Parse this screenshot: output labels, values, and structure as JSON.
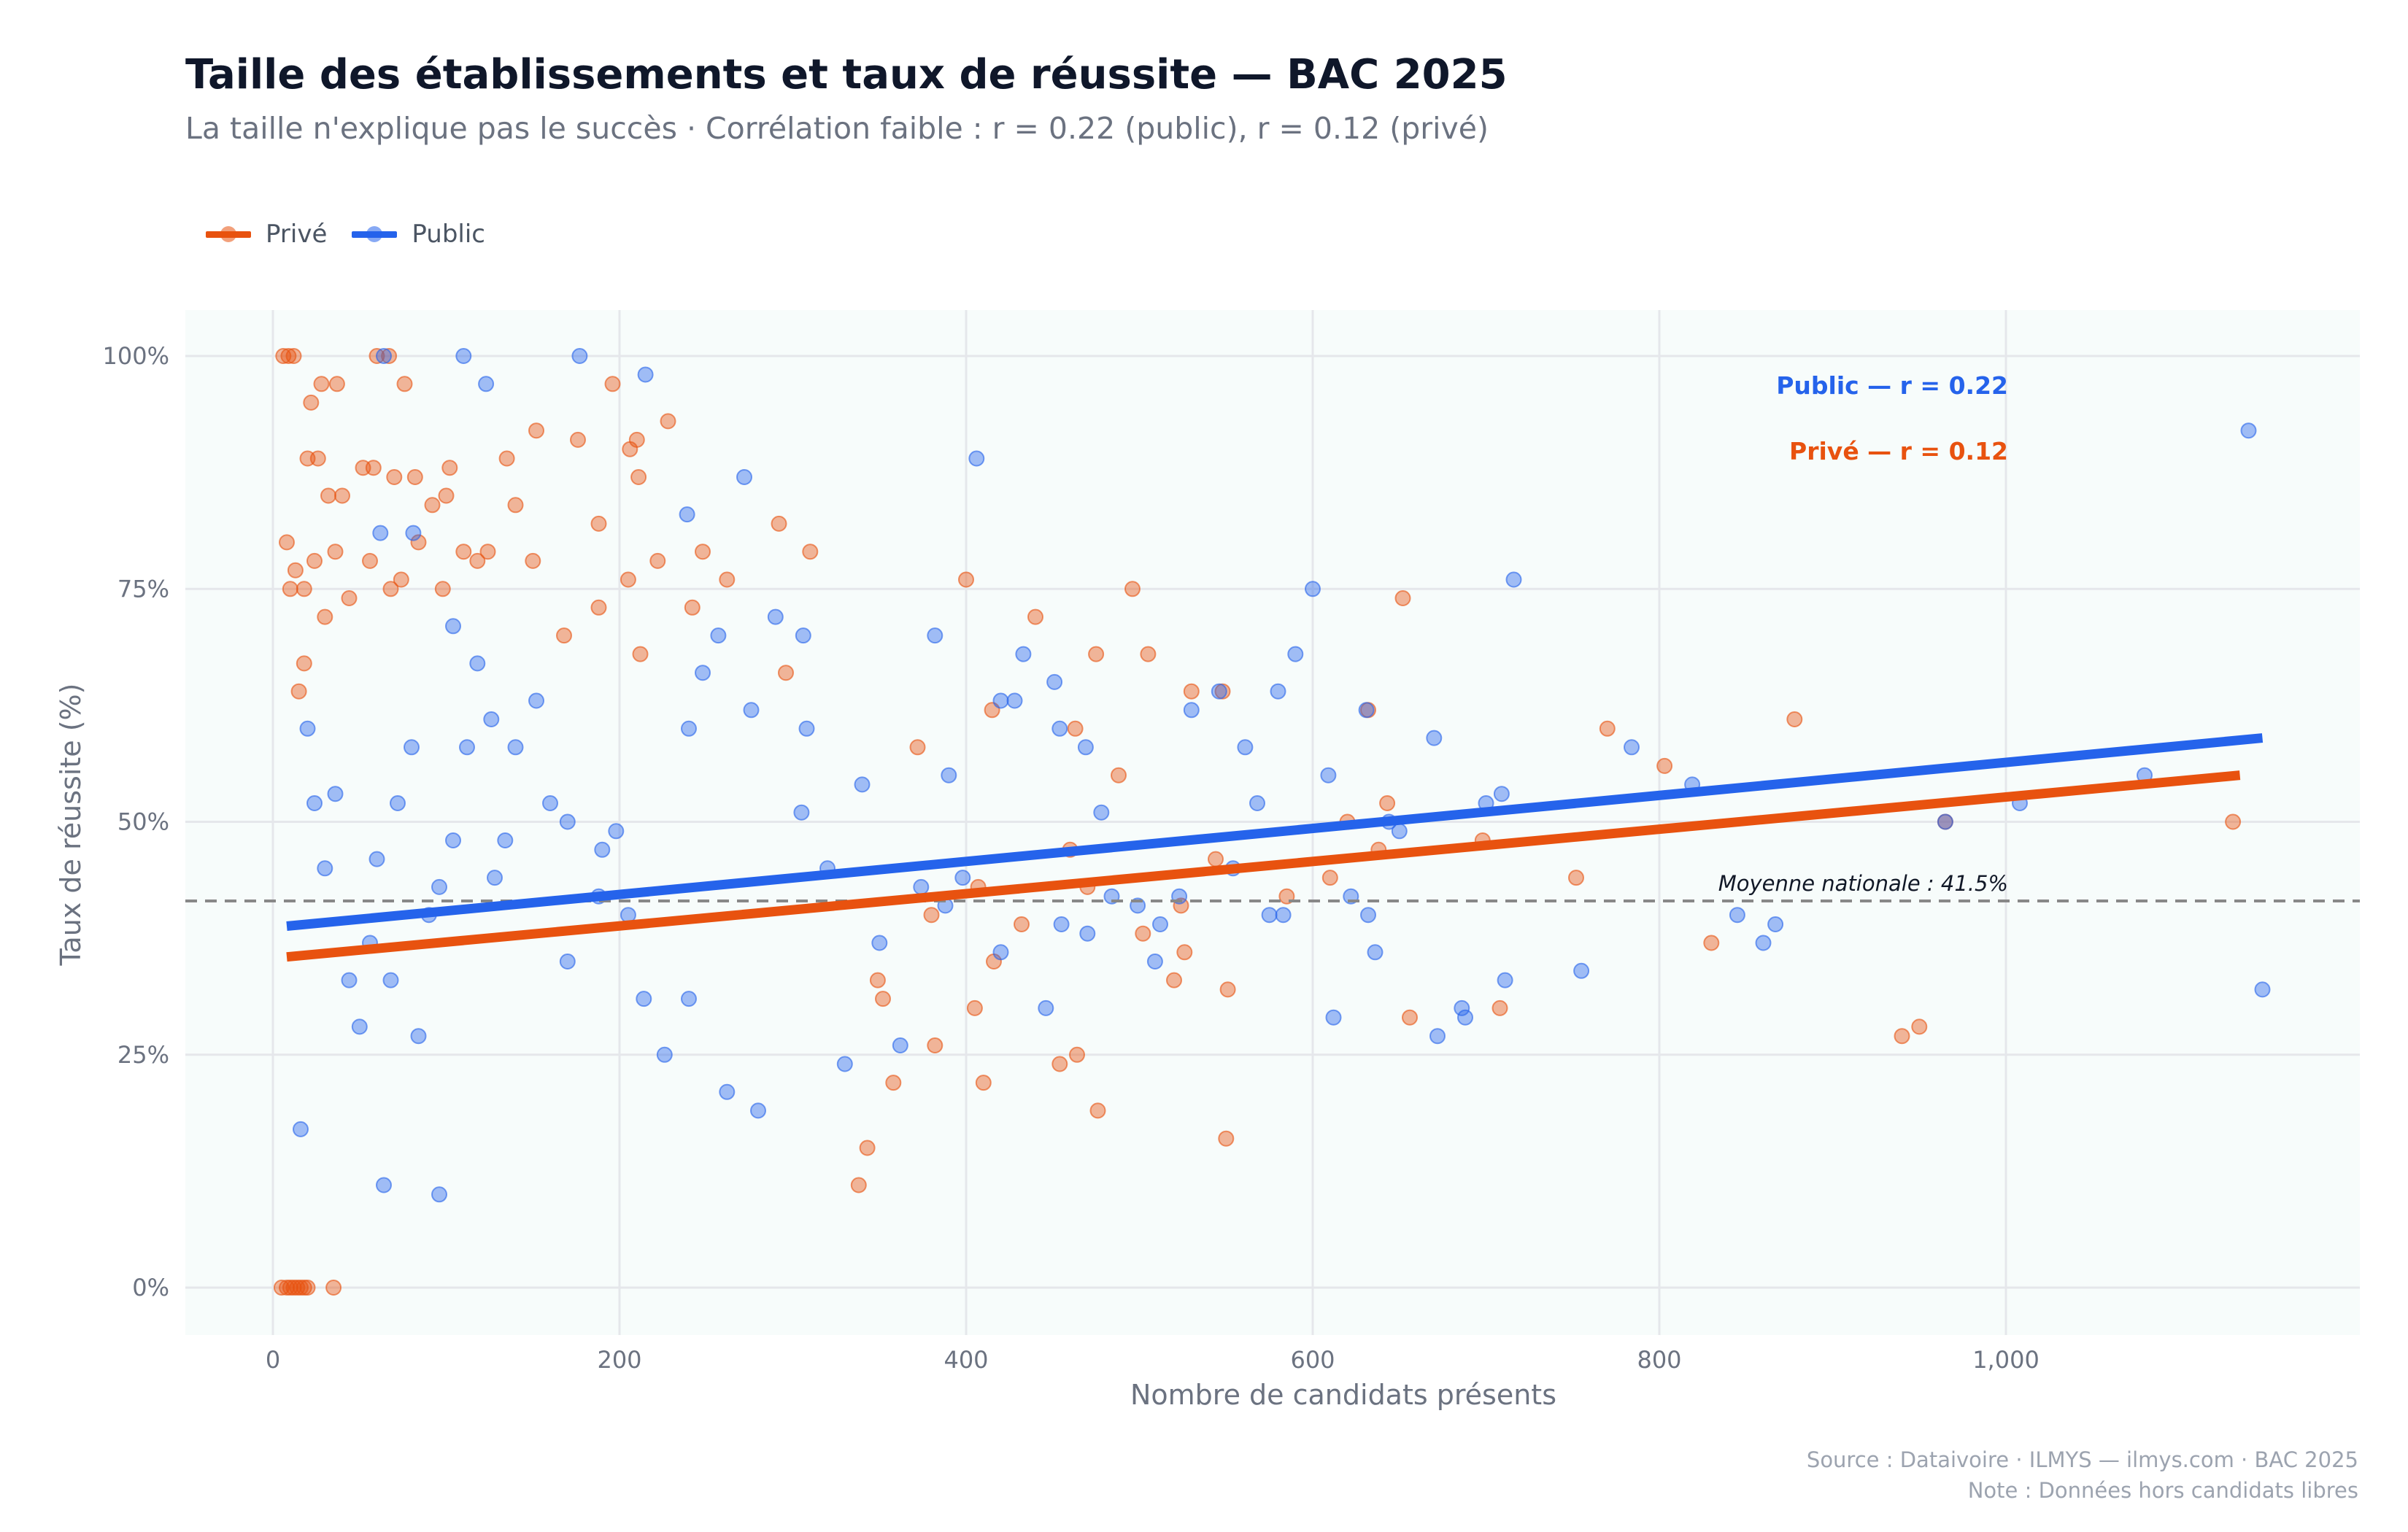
{
  "header": {
    "title": "Taille des établissements et taux de réussite — BAC 2025",
    "subtitle": "La taille n'explique pas le succès · Corrélation faible : r = 0.22 (public), r = 0.12 (privé)"
  },
  "legend": {
    "items": [
      {
        "label": "Privé",
        "color": "#e8520f"
      },
      {
        "label": "Public",
        "color": "#2563eb"
      }
    ]
  },
  "footer": {
    "source": "Source : Dataivoire  ·  ILMYS — ilmys.com  ·  BAC 2025",
    "note": "Note : Données hors candidats libres"
  },
  "chart_data": {
    "type": "scatter",
    "title": "Taille des établissements et taux de réussite — BAC 2025",
    "xlabel": "Nombre de candidats présents",
    "ylabel": "Taux de réussite (%)",
    "xlim": [
      -50,
      1200
    ],
    "ylim": [
      -5,
      105
    ],
    "x_ticks": [
      0,
      200,
      400,
      600,
      800,
      1000
    ],
    "x_tick_labels": [
      "0",
      "200",
      "400",
      "600",
      "800",
      "1,000"
    ],
    "y_ticks": [
      0,
      25,
      50,
      75,
      100
    ],
    "y_tick_labels": [
      "0%",
      "25%",
      "50%",
      "75%",
      "100%"
    ],
    "grid": true,
    "legend_position": "top-left",
    "series": [
      {
        "name": "Privé",
        "color": "#e8520f",
        "points": [
          [
            5,
            0
          ],
          [
            8,
            0
          ],
          [
            10,
            0
          ],
          [
            12,
            0
          ],
          [
            14,
            0
          ],
          [
            16,
            0
          ],
          [
            18,
            0
          ],
          [
            20,
            0
          ],
          [
            35,
            0
          ],
          [
            6,
            100
          ],
          [
            9,
            100
          ],
          [
            12,
            100
          ],
          [
            37,
            97
          ],
          [
            60,
            100
          ],
          [
            67,
            100
          ],
          [
            76,
            97
          ],
          [
            196,
            97
          ],
          [
            210,
            91
          ],
          [
            206,
            90
          ],
          [
            176,
            91
          ],
          [
            8,
            80
          ],
          [
            10,
            75
          ],
          [
            13,
            77
          ],
          [
            15,
            64
          ],
          [
            18,
            67
          ],
          [
            22,
            95
          ],
          [
            28,
            97
          ],
          [
            20,
            89
          ],
          [
            26,
            89
          ],
          [
            32,
            85
          ],
          [
            40,
            85
          ],
          [
            52,
            88
          ],
          [
            58,
            88
          ],
          [
            70,
            87
          ],
          [
            82,
            87
          ],
          [
            92,
            84
          ],
          [
            100,
            85
          ],
          [
            102,
            88
          ],
          [
            135,
            89
          ],
          [
            140,
            84
          ],
          [
            152,
            92
          ],
          [
            188,
            82
          ],
          [
            211,
            87
          ],
          [
            228,
            93
          ],
          [
            18,
            75
          ],
          [
            24,
            78
          ],
          [
            30,
            72
          ],
          [
            36,
            79
          ],
          [
            44,
            74
          ],
          [
            56,
            78
          ],
          [
            68,
            75
          ],
          [
            74,
            76
          ],
          [
            84,
            80
          ],
          [
            98,
            75
          ],
          [
            110,
            79
          ],
          [
            118,
            78
          ],
          [
            124,
            79
          ],
          [
            150,
            78
          ],
          [
            168,
            70
          ],
          [
            188,
            73
          ],
          [
            205,
            76
          ],
          [
            212,
            68
          ],
          [
            222,
            78
          ],
          [
            248,
            79
          ],
          [
            262,
            76
          ],
          [
            292,
            82
          ],
          [
            310,
            79
          ],
          [
            296,
            66
          ],
          [
            242,
            73
          ],
          [
            400,
            76
          ],
          [
            407,
            43
          ],
          [
            415,
            62
          ],
          [
            440,
            72
          ],
          [
            463,
            60
          ],
          [
            475,
            68
          ],
          [
            496,
            75
          ],
          [
            505,
            68
          ],
          [
            530,
            64
          ],
          [
            548,
            64
          ],
          [
            585,
            42
          ],
          [
            610,
            44
          ],
          [
            620,
            50
          ],
          [
            632,
            62
          ],
          [
            638,
            47
          ],
          [
            652,
            74
          ],
          [
            770,
            60
          ],
          [
            803,
            56
          ],
          [
            830,
            37
          ],
          [
            878,
            61
          ],
          [
            940,
            27
          ],
          [
            950,
            28
          ],
          [
            965,
            50
          ],
          [
            1131,
            50
          ],
          [
            460,
            47
          ],
          [
            470,
            43
          ],
          [
            488,
            55
          ],
          [
            502,
            38
          ],
          [
            520,
            33
          ],
          [
            524,
            41
          ],
          [
            551,
            32
          ],
          [
            550,
            16
          ],
          [
            476,
            19
          ],
          [
            464,
            25
          ],
          [
            454,
            24
          ],
          [
            432,
            39
          ],
          [
            416,
            35
          ],
          [
            405,
            30
          ],
          [
            410,
            22
          ],
          [
            380,
            40
          ],
          [
            372,
            58
          ],
          [
            382,
            26
          ],
          [
            349,
            33
          ],
          [
            338,
            11
          ],
          [
            352,
            31
          ],
          [
            358,
            22
          ],
          [
            343,
            15
          ],
          [
            698,
            48
          ],
          [
            752,
            44
          ],
          [
            708,
            30
          ],
          [
            656,
            29
          ],
          [
            643,
            52
          ],
          [
            544,
            46
          ],
          [
            526,
            36
          ]
        ],
        "trend": {
          "x0": 8,
          "y0": 35.5,
          "x1": 1135,
          "y1": 55.0,
          "r": 0.12,
          "label": "Privé — r = 0.12"
        }
      },
      {
        "name": "Public",
        "color": "#2563eb",
        "points": [
          [
            64,
            100
          ],
          [
            110,
            100
          ],
          [
            177,
            100
          ],
          [
            123,
            97
          ],
          [
            215,
            98
          ],
          [
            406,
            89
          ],
          [
            272,
            87
          ],
          [
            239,
            83
          ],
          [
            81,
            81
          ],
          [
            62,
            81
          ],
          [
            1140,
            92
          ],
          [
            716,
            76
          ],
          [
            600,
            75
          ],
          [
            382,
            70
          ],
          [
            306,
            70
          ],
          [
            257,
            70
          ],
          [
            590,
            68
          ],
          [
            433,
            68
          ],
          [
            631,
            62
          ],
          [
            580,
            64
          ],
          [
            546,
            64
          ],
          [
            530,
            62
          ],
          [
            451,
            65
          ],
          [
            428,
            63
          ],
          [
            420,
            63
          ],
          [
            390,
            55
          ],
          [
            454,
            60
          ],
          [
            469,
            58
          ],
          [
            478,
            51
          ],
          [
            484,
            42
          ],
          [
            499,
            41
          ],
          [
            509,
            35
          ],
          [
            512,
            39
          ],
          [
            523,
            42
          ],
          [
            554,
            45
          ],
          [
            561,
            58
          ],
          [
            568,
            52
          ],
          [
            575,
            40
          ],
          [
            583,
            40
          ],
          [
            609,
            55
          ],
          [
            612,
            29
          ],
          [
            622,
            42
          ],
          [
            632,
            40
          ],
          [
            636,
            36
          ],
          [
            644,
            50
          ],
          [
            650,
            49
          ],
          [
            670,
            59
          ],
          [
            672,
            27
          ],
          [
            686,
            30
          ],
          [
            688,
            29
          ],
          [
            700,
            52
          ],
          [
            709,
            53
          ],
          [
            711,
            33
          ],
          [
            755,
            34
          ],
          [
            784,
            58
          ],
          [
            819,
            54
          ],
          [
            845,
            40
          ],
          [
            860,
            37
          ],
          [
            867,
            39
          ],
          [
            965,
            50
          ],
          [
            1008,
            52
          ],
          [
            1080,
            55
          ],
          [
            1148,
            32
          ],
          [
            470,
            38
          ],
          [
            455,
            39
          ],
          [
            446,
            30
          ],
          [
            420,
            36
          ],
          [
            388,
            41
          ],
          [
            362,
            26
          ],
          [
            350,
            37
          ],
          [
            330,
            24
          ],
          [
            320,
            45
          ],
          [
            305,
            51
          ],
          [
            290,
            72
          ],
          [
            280,
            19
          ],
          [
            262,
            21
          ],
          [
            240,
            31
          ],
          [
            226,
            25
          ],
          [
            214,
            31
          ],
          [
            205,
            40
          ],
          [
            198,
            49
          ],
          [
            188,
            42
          ],
          [
            170,
            35
          ],
          [
            160,
            52
          ],
          [
            152,
            63
          ],
          [
            140,
            58
          ],
          [
            134,
            48
          ],
          [
            126,
            61
          ],
          [
            118,
            67
          ],
          [
            112,
            58
          ],
          [
            104,
            48
          ],
          [
            96,
            43
          ],
          [
            90,
            40
          ],
          [
            80,
            58
          ],
          [
            72,
            52
          ],
          [
            60,
            46
          ],
          [
            56,
            37
          ],
          [
            50,
            28
          ],
          [
            44,
            33
          ],
          [
            36,
            53
          ],
          [
            30,
            45
          ],
          [
            24,
            52
          ],
          [
            20,
            60
          ],
          [
            16,
            17
          ],
          [
            68,
            33
          ],
          [
            84,
            27
          ],
          [
            96,
            10
          ],
          [
            104,
            71
          ],
          [
            64,
            11
          ],
          [
            128,
            44
          ],
          [
            170,
            50
          ],
          [
            190,
            47
          ],
          [
            240,
            60
          ],
          [
            248,
            66
          ],
          [
            276,
            62
          ],
          [
            308,
            60
          ],
          [
            340,
            54
          ],
          [
            374,
            43
          ],
          [
            398,
            44
          ]
        ],
        "trend": {
          "x0": 8,
          "y0": 38.8,
          "x1": 1148,
          "y1": 59.0,
          "r": 0.22,
          "label": "Public — r = 0.22"
        }
      }
    ],
    "reference_line": {
      "y": 41.5,
      "label": "Moyenne nationale : 41.5%"
    }
  }
}
